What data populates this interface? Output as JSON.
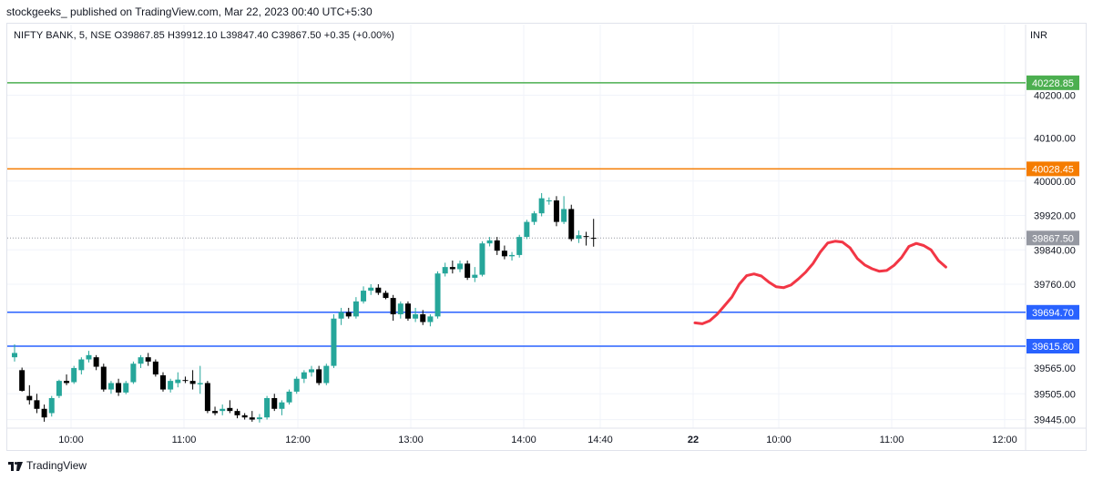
{
  "attribution": "stockgeeks_ published on TradingView.com, Mar 22, 2023 00:40 UTC+5:30",
  "symbol_line": "NIFTY BANK, 5, NSE  O39867.85  H39912.10  L39847.40  C39867.50  +0.35 (+0.00%)",
  "currency": "INR",
  "brand": "TradingView",
  "colors": {
    "up": "#26a69a",
    "down": "#000000",
    "projection": "#f23645"
  },
  "chart_data": {
    "type": "candlestick",
    "ylim": [
      39425,
      40290
    ],
    "y_ticks": [
      "40200.00",
      "40100.00",
      "40000.00",
      "39920.00",
      "39840.00",
      "39760.00",
      "39565.00",
      "39505.00",
      "39445.00"
    ],
    "x_ticks": [
      "10:00",
      "11:00",
      "12:00",
      "13:00",
      "14:00",
      "14:40",
      "22",
      "10:00",
      "11:00",
      "12:00"
    ],
    "levels": [
      {
        "value": 40228.85,
        "label": "40228.85",
        "color": "#4caf50"
      },
      {
        "value": 40028.45,
        "label": "40028.45",
        "color": "#f57c00"
      },
      {
        "value": 39694.7,
        "label": "39694.70",
        "color": "#2962ff"
      },
      {
        "value": 39615.8,
        "label": "39615.80",
        "color": "#2962ff"
      }
    ],
    "last_price": {
      "value": 39867.5,
      "label": "39867.50"
    },
    "candles": [
      [
        39590,
        39620,
        39580,
        39600
      ],
      [
        39560,
        39566,
        39510,
        39512
      ],
      [
        39500,
        39525,
        39480,
        39490
      ],
      [
        39490,
        39505,
        39460,
        39470
      ],
      [
        39470,
        39480,
        39440,
        39450
      ],
      [
        39460,
        39500,
        39452,
        39495
      ],
      [
        39500,
        39538,
        39495,
        39535
      ],
      [
        39535,
        39550,
        39525,
        39530
      ],
      [
        39532,
        39570,
        39528,
        39565
      ],
      [
        39560,
        39590,
        39550,
        39585
      ],
      [
        39585,
        39605,
        39578,
        39595
      ],
      [
        39590,
        39595,
        39560,
        39568
      ],
      [
        39568,
        39575,
        39510,
        39515
      ],
      [
        39515,
        39535,
        39505,
        39530
      ],
      [
        39530,
        39540,
        39500,
        39508
      ],
      [
        39508,
        39535,
        39504,
        39530
      ],
      [
        39532,
        39580,
        39528,
        39575
      ],
      [
        39575,
        39595,
        39565,
        39590
      ],
      [
        39590,
        39600,
        39570,
        39580
      ],
      [
        39580,
        39585,
        39545,
        39550
      ],
      [
        39548,
        39555,
        39510,
        39515
      ],
      [
        39515,
        39540,
        39508,
        39535
      ],
      [
        39530,
        39555,
        39520,
        39538
      ],
      [
        39537,
        39545,
        39530,
        39535
      ],
      [
        39535,
        39560,
        39515,
        39528
      ],
      [
        39527,
        39570,
        39505,
        39530
      ],
      [
        39530,
        39535,
        39460,
        39465
      ],
      [
        39465,
        39475,
        39455,
        39460
      ],
      [
        39465,
        39480,
        39455,
        39470
      ],
      [
        39472,
        39490,
        39460,
        39465
      ],
      [
        39465,
        39470,
        39448,
        39455
      ],
      [
        39455,
        39460,
        39445,
        39450
      ],
      [
        39450,
        39465,
        39440,
        39445
      ],
      [
        39446,
        39458,
        39438,
        39450
      ],
      [
        39450,
        39500,
        39445,
        39495
      ],
      [
        39495,
        39505,
        39465,
        39470
      ],
      [
        39470,
        39490,
        39455,
        39485
      ],
      [
        39485,
        39515,
        39480,
        39510
      ],
      [
        39510,
        39545,
        39505,
        39540
      ],
      [
        39540,
        39560,
        39530,
        39555
      ],
      [
        39555,
        39570,
        39545,
        39562
      ],
      [
        39562,
        39570,
        39525,
        39530
      ],
      [
        39530,
        39575,
        39525,
        39570
      ],
      [
        39570,
        39690,
        39565,
        39680
      ],
      [
        39680,
        39705,
        39665,
        39695
      ],
      [
        39695,
        39705,
        39680,
        39685
      ],
      [
        39685,
        39730,
        39680,
        39720
      ],
      [
        39720,
        39755,
        39715,
        39745
      ],
      [
        39745,
        39760,
        39735,
        39752
      ],
      [
        39752,
        39760,
        39735,
        39740
      ],
      [
        39740,
        39745,
        39725,
        39728
      ],
      [
        39728,
        39735,
        39675,
        39690
      ],
      [
        39690,
        39720,
        39680,
        39715
      ],
      [
        39715,
        39720,
        39675,
        39680
      ],
      [
        39680,
        39705,
        39672,
        39690
      ],
      [
        39690,
        39700,
        39665,
        39672
      ],
      [
        39672,
        39690,
        39662,
        39685
      ],
      [
        39685,
        39790,
        39680,
        39785
      ],
      [
        39785,
        39810,
        39778,
        39800
      ],
      [
        39800,
        39815,
        39785,
        39795
      ],
      [
        39795,
        39815,
        39788,
        39808
      ],
      [
        39808,
        39815,
        39770,
        39775
      ],
      [
        39775,
        39800,
        39765,
        39782
      ],
      [
        39782,
        39860,
        39778,
        39855
      ],
      [
        39855,
        39870,
        39848,
        39862
      ],
      [
        39862,
        39870,
        39828,
        39838
      ],
      [
        39838,
        39850,
        39818,
        39825
      ],
      [
        39825,
        39835,
        39815,
        39828
      ],
      [
        39828,
        39875,
        39822,
        39870
      ],
      [
        39870,
        39910,
        39865,
        39905
      ],
      [
        39905,
        39930,
        39898,
        39925
      ],
      [
        39925,
        39972,
        39918,
        39960
      ],
      [
        39955,
        39962,
        39945,
        39955
      ],
      [
        39955,
        39965,
        39895,
        39905
      ],
      [
        39905,
        39965,
        39900,
        39935
      ],
      [
        39935,
        39945,
        39860,
        39865
      ],
      [
        39866,
        39885,
        39856,
        39874
      ],
      [
        39872,
        39882,
        39850,
        39870
      ],
      [
        39867.85,
        39912.1,
        39847.4,
        39867.5
      ]
    ],
    "projection": [
      [
        39670,
        39665
      ],
      [
        39668,
        39658
      ],
      [
        39675,
        39655
      ],
      [
        39690,
        39665
      ],
      [
        39710,
        39698
      ],
      [
        39730,
        39712
      ],
      [
        39760,
        39735
      ],
      [
        39780,
        39763
      ],
      [
        39784,
        39775
      ],
      [
        39779,
        39785
      ],
      [
        39765,
        39790
      ],
      [
        39754,
        39798
      ],
      [
        39752,
        39800
      ],
      [
        39758,
        39802
      ],
      [
        39772,
        39805
      ],
      [
        39788,
        39810
      ],
      [
        39808,
        39815
      ],
      [
        39835,
        39820
      ],
      [
        39856,
        39828
      ],
      [
        39860,
        39836
      ],
      [
        39858,
        39845
      ],
      [
        39845,
        39850
      ],
      [
        39820,
        39855
      ],
      [
        39805,
        39858
      ],
      [
        39796,
        39862
      ],
      [
        39790,
        39866
      ],
      [
        39792,
        39872
      ],
      [
        39804,
        39875
      ],
      [
        39822,
        39878
      ],
      [
        39848,
        39880
      ],
      [
        39855,
        39882
      ],
      [
        39850,
        39886
      ],
      [
        39840,
        39890
      ],
      [
        39815,
        39895
      ],
      [
        39800,
        39900
      ]
    ]
  }
}
